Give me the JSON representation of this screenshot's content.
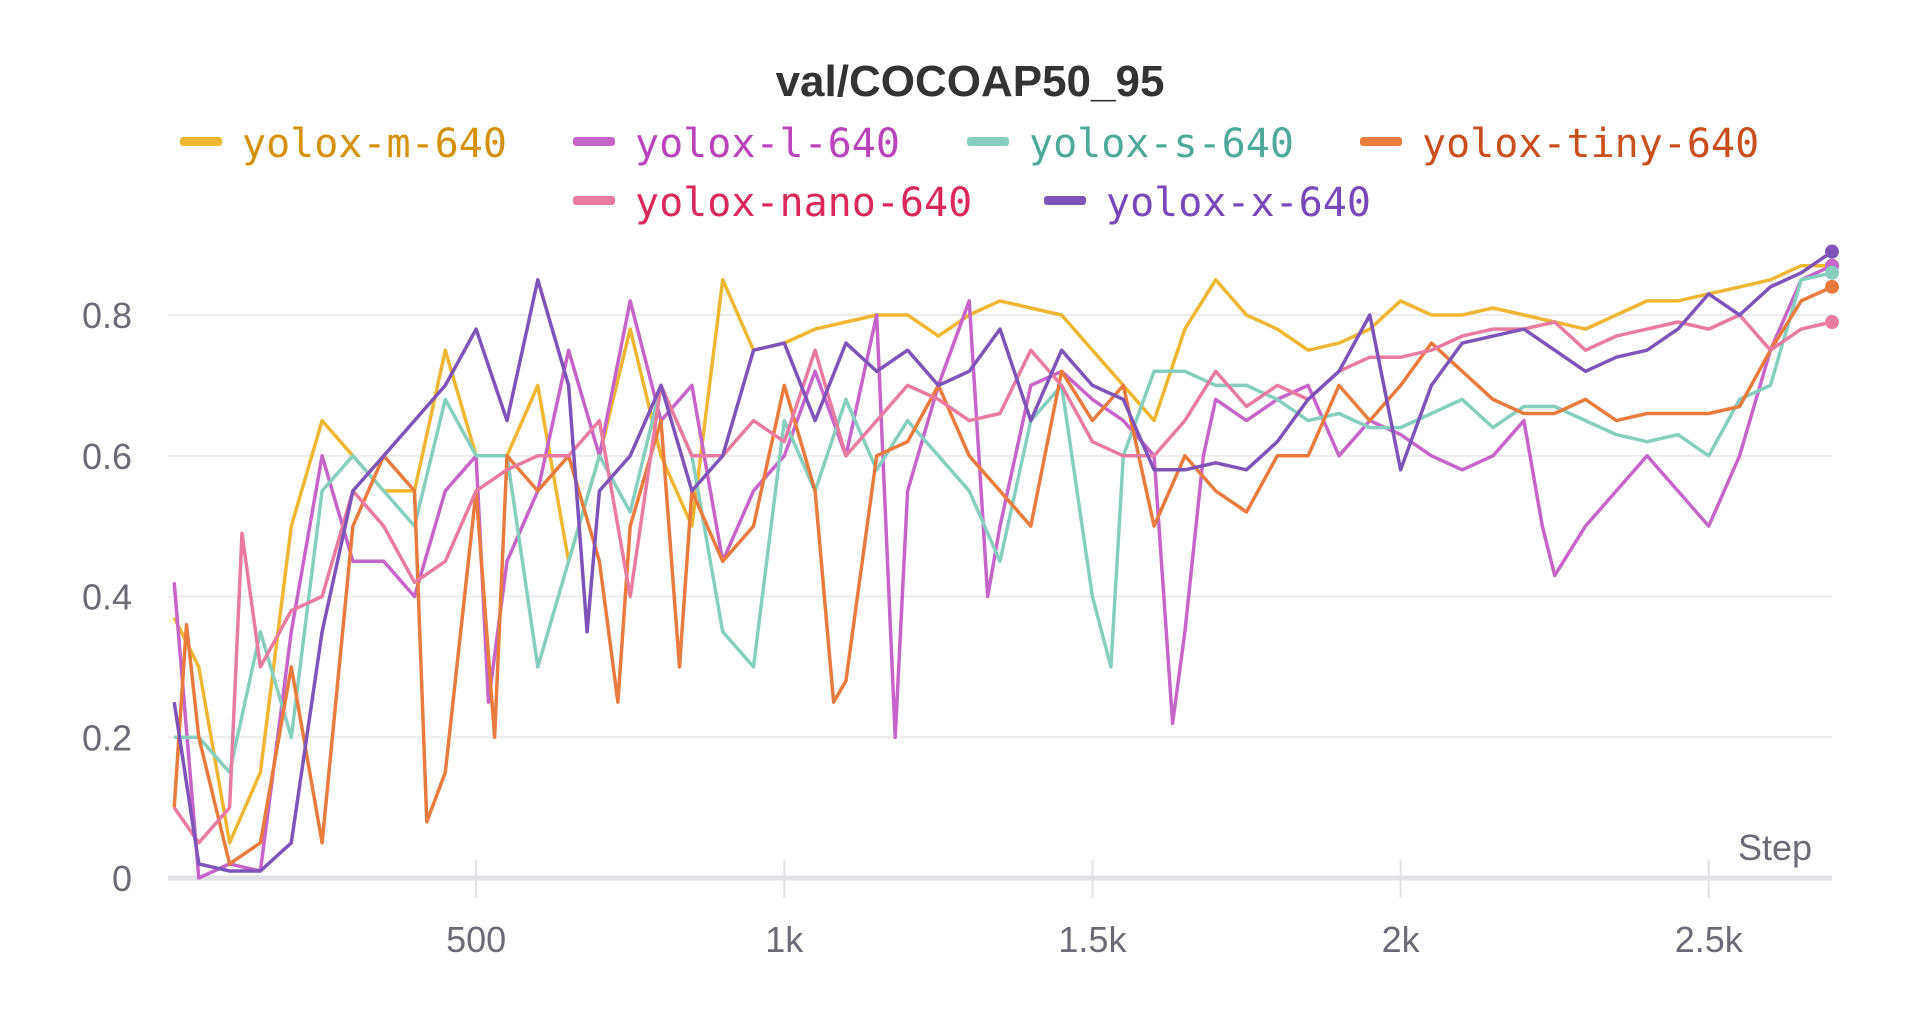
{
  "chart_data": {
    "type": "line",
    "title": "val/COCOAP50_95",
    "xlabel": "Step",
    "ylabel": "",
    "xlim": [
      0,
      2700
    ],
    "ylim": [
      0,
      0.9
    ],
    "grid": true,
    "legend_placement": "top",
    "x_ticks": [
      {
        "v": 500,
        "label": "500"
      },
      {
        "v": 1000,
        "label": "1k"
      },
      {
        "v": 1500,
        "label": "1.5k"
      },
      {
        "v": 2000,
        "label": "2k"
      },
      {
        "v": 2500,
        "label": "2.5k"
      }
    ],
    "y_ticks": [
      {
        "v": 0,
        "label": "0"
      },
      {
        "v": 0.2,
        "label": "0.2"
      },
      {
        "v": 0.4,
        "label": "0.4"
      },
      {
        "v": 0.6,
        "label": "0.6"
      },
      {
        "v": 0.8,
        "label": "0.8"
      }
    ],
    "series": [
      {
        "name": "yolox-m-640",
        "color": "#EDB732",
        "text_color": "#D4920A",
        "x": [
          10,
          50,
          100,
          150,
          200,
          250,
          300,
          350,
          400,
          450,
          500,
          550,
          600,
          650,
          700,
          750,
          800,
          850,
          900,
          950,
          1000,
          1050,
          1100,
          1150,
          1200,
          1250,
          1300,
          1350,
          1400,
          1450,
          1500,
          1550,
          1600,
          1650,
          1700,
          1750,
          1800,
          1850,
          1900,
          1950,
          2000,
          2050,
          2100,
          2150,
          2200,
          2250,
          2300,
          2350,
          2400,
          2450,
          2500,
          2550,
          2600,
          2650,
          2700
        ],
        "y": [
          0.37,
          0.3,
          0.05,
          0.15,
          0.5,
          0.65,
          0.6,
          0.55,
          0.55,
          0.75,
          0.6,
          0.6,
          0.7,
          0.45,
          0.6,
          0.78,
          0.6,
          0.5,
          0.85,
          0.75,
          0.76,
          0.78,
          0.79,
          0.8,
          0.8,
          0.77,
          0.8,
          0.82,
          0.81,
          0.8,
          0.75,
          0.7,
          0.65,
          0.78,
          0.85,
          0.8,
          0.78,
          0.75,
          0.76,
          0.78,
          0.82,
          0.8,
          0.8,
          0.81,
          0.8,
          0.79,
          0.78,
          0.8,
          0.82,
          0.82,
          0.83,
          0.84,
          0.85,
          0.87,
          0.87
        ]
      },
      {
        "name": "yolox-l-640",
        "color": "#C565C7",
        "text_color": "#B944B9",
        "x": [
          10,
          50,
          100,
          150,
          200,
          250,
          300,
          350,
          400,
          450,
          500,
          520,
          550,
          600,
          650,
          700,
          750,
          800,
          850,
          900,
          950,
          1000,
          1050,
          1100,
          1150,
          1180,
          1200,
          1250,
          1300,
          1330,
          1350,
          1400,
          1450,
          1500,
          1550,
          1600,
          1630,
          1650,
          1680,
          1700,
          1750,
          1800,
          1850,
          1900,
          1950,
          2000,
          2050,
          2100,
          2150,
          2200,
          2230,
          2250,
          2300,
          2350,
          2400,
          2450,
          2500,
          2550,
          2600,
          2650,
          2700
        ],
        "y": [
          0.42,
          0.0,
          0.02,
          0.01,
          0.35,
          0.6,
          0.45,
          0.45,
          0.4,
          0.55,
          0.6,
          0.25,
          0.45,
          0.55,
          0.75,
          0.6,
          0.82,
          0.65,
          0.7,
          0.45,
          0.55,
          0.6,
          0.72,
          0.6,
          0.8,
          0.2,
          0.55,
          0.7,
          0.82,
          0.4,
          0.5,
          0.7,
          0.72,
          0.68,
          0.65,
          0.6,
          0.22,
          0.35,
          0.6,
          0.68,
          0.65,
          0.68,
          0.7,
          0.6,
          0.65,
          0.63,
          0.6,
          0.58,
          0.6,
          0.65,
          0.5,
          0.43,
          0.5,
          0.55,
          0.6,
          0.55,
          0.5,
          0.6,
          0.75,
          0.85,
          0.87
        ]
      },
      {
        "name": "yolox-s-640",
        "color": "#86CFBF",
        "text_color": "#4EA99A",
        "x": [
          10,
          50,
          100,
          150,
          200,
          250,
          300,
          350,
          400,
          450,
          500,
          550,
          600,
          650,
          700,
          750,
          800,
          850,
          900,
          950,
          1000,
          1050,
          1100,
          1150,
          1200,
          1250,
          1300,
          1350,
          1400,
          1450,
          1500,
          1530,
          1550,
          1600,
          1650,
          1700,
          1750,
          1800,
          1850,
          1900,
          1950,
          2000,
          2050,
          2100,
          2150,
          2200,
          2250,
          2300,
          2350,
          2400,
          2450,
          2500,
          2550,
          2600,
          2650,
          2700
        ],
        "y": [
          0.2,
          0.2,
          0.15,
          0.35,
          0.2,
          0.55,
          0.6,
          0.55,
          0.5,
          0.68,
          0.6,
          0.6,
          0.3,
          0.45,
          0.6,
          0.52,
          0.7,
          0.6,
          0.35,
          0.3,
          0.65,
          0.55,
          0.68,
          0.58,
          0.65,
          0.6,
          0.55,
          0.45,
          0.65,
          0.7,
          0.4,
          0.3,
          0.6,
          0.72,
          0.72,
          0.7,
          0.7,
          0.68,
          0.65,
          0.66,
          0.64,
          0.64,
          0.66,
          0.68,
          0.64,
          0.67,
          0.67,
          0.65,
          0.63,
          0.62,
          0.63,
          0.6,
          0.68,
          0.7,
          0.85,
          0.86
        ]
      },
      {
        "name": "yolox-tiny-640",
        "color": "#E87B3E",
        "text_color": "#C8501E",
        "x": [
          10,
          30,
          50,
          100,
          150,
          200,
          250,
          300,
          350,
          400,
          420,
          450,
          500,
          530,
          550,
          600,
          650,
          700,
          730,
          750,
          800,
          830,
          850,
          900,
          950,
          1000,
          1050,
          1080,
          1100,
          1150,
          1200,
          1250,
          1300,
          1350,
          1400,
          1450,
          1500,
          1550,
          1600,
          1650,
          1700,
          1750,
          1800,
          1850,
          1900,
          1950,
          2000,
          2050,
          2100,
          2150,
          2200,
          2250,
          2300,
          2350,
          2400,
          2450,
          2500,
          2550,
          2600,
          2650,
          2700
        ],
        "y": [
          0.1,
          0.36,
          0.2,
          0.02,
          0.05,
          0.3,
          0.05,
          0.5,
          0.6,
          0.55,
          0.08,
          0.15,
          0.55,
          0.2,
          0.6,
          0.55,
          0.6,
          0.45,
          0.25,
          0.5,
          0.65,
          0.3,
          0.55,
          0.45,
          0.5,
          0.7,
          0.55,
          0.25,
          0.28,
          0.6,
          0.62,
          0.7,
          0.6,
          0.55,
          0.5,
          0.72,
          0.65,
          0.7,
          0.5,
          0.6,
          0.55,
          0.52,
          0.6,
          0.6,
          0.7,
          0.65,
          0.7,
          0.76,
          0.72,
          0.68,
          0.66,
          0.66,
          0.68,
          0.65,
          0.66,
          0.66,
          0.66,
          0.67,
          0.75,
          0.82,
          0.84
        ]
      },
      {
        "name": "yolox-nano-640",
        "color": "#E87BA0",
        "text_color": "#D8285C",
        "x": [
          10,
          50,
          100,
          120,
          150,
          200,
          250,
          300,
          350,
          400,
          450,
          500,
          550,
          600,
          650,
          700,
          750,
          800,
          850,
          900,
          950,
          1000,
          1050,
          1100,
          1150,
          1200,
          1250,
          1300,
          1350,
          1400,
          1450,
          1500,
          1550,
          1600,
          1650,
          1700,
          1750,
          1800,
          1850,
          1900,
          1950,
          2000,
          2050,
          2100,
          2150,
          2200,
          2250,
          2300,
          2350,
          2400,
          2450,
          2500,
          2550,
          2600,
          2650,
          2700
        ],
        "y": [
          0.1,
          0.05,
          0.1,
          0.49,
          0.3,
          0.38,
          0.4,
          0.55,
          0.5,
          0.42,
          0.45,
          0.55,
          0.58,
          0.6,
          0.6,
          0.65,
          0.4,
          0.7,
          0.6,
          0.6,
          0.65,
          0.62,
          0.75,
          0.6,
          0.65,
          0.7,
          0.68,
          0.65,
          0.66,
          0.75,
          0.7,
          0.62,
          0.6,
          0.6,
          0.65,
          0.72,
          0.67,
          0.7,
          0.68,
          0.72,
          0.74,
          0.74,
          0.75,
          0.77,
          0.78,
          0.78,
          0.79,
          0.75,
          0.77,
          0.78,
          0.79,
          0.78,
          0.8,
          0.75,
          0.78,
          0.79
        ]
      },
      {
        "name": "yolox-x-640",
        "color": "#7E54B8",
        "text_color": "#7848B8",
        "x": [
          10,
          50,
          100,
          150,
          200,
          250,
          300,
          350,
          400,
          450,
          500,
          550,
          600,
          650,
          680,
          700,
          750,
          800,
          850,
          900,
          950,
          1000,
          1050,
          1100,
          1150,
          1200,
          1250,
          1300,
          1350,
          1400,
          1450,
          1500,
          1550,
          1600,
          1650,
          1700,
          1750,
          1800,
          1850,
          1900,
          1950,
          2000,
          2050,
          2100,
          2150,
          2200,
          2250,
          2300,
          2350,
          2400,
          2450,
          2500,
          2550,
          2600,
          2650,
          2700
        ],
        "y": [
          0.25,
          0.02,
          0.01,
          0.01,
          0.05,
          0.35,
          0.55,
          0.6,
          0.65,
          0.7,
          0.78,
          0.65,
          0.85,
          0.7,
          0.35,
          0.55,
          0.6,
          0.7,
          0.55,
          0.6,
          0.75,
          0.76,
          0.65,
          0.76,
          0.72,
          0.75,
          0.7,
          0.72,
          0.78,
          0.65,
          0.75,
          0.7,
          0.68,
          0.58,
          0.58,
          0.59,
          0.58,
          0.62,
          0.68,
          0.72,
          0.8,
          0.58,
          0.7,
          0.76,
          0.77,
          0.78,
          0.75,
          0.72,
          0.74,
          0.75,
          0.78,
          0.83,
          0.8,
          0.84,
          0.86,
          0.89
        ]
      }
    ]
  }
}
